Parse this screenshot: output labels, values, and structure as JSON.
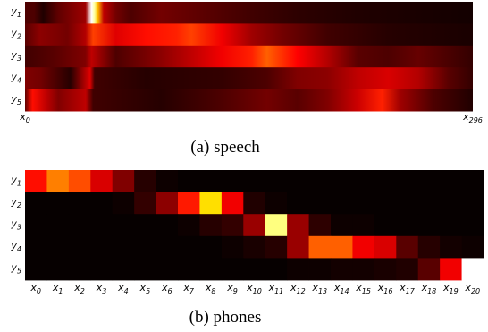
{
  "chart_data": [
    {
      "type": "heatmap",
      "caption": "(a) speech",
      "rows": [
        "y1",
        "y2",
        "y3",
        "y4",
        "y5"
      ],
      "x_tick_labels": [
        "x0",
        "x296"
      ],
      "x_range": [
        0,
        296
      ],
      "colormap": "hot",
      "bands": [
        [
          [
            6,
            0.12
          ],
          [
            12,
            0.05
          ],
          [
            22,
            0.15
          ],
          [
            40,
            0.25
          ],
          [
            44,
            1.0
          ],
          [
            46,
            0.92
          ],
          [
            48,
            0.7
          ],
          [
            52,
            0.3
          ],
          [
            60,
            0.18
          ],
          [
            70,
            0.12
          ],
          [
            90,
            0.18
          ],
          [
            120,
            0.14
          ],
          [
            150,
            0.1
          ],
          [
            180,
            0.07
          ],
          [
            220,
            0.05
          ],
          [
            260,
            0.04
          ],
          [
            296,
            0.03
          ]
        ],
        [
          [
            0,
            0.14
          ],
          [
            10,
            0.22
          ],
          [
            28,
            0.18
          ],
          [
            40,
            0.28
          ],
          [
            45,
            0.5
          ],
          [
            60,
            0.35
          ],
          [
            80,
            0.42
          ],
          [
            100,
            0.45
          ],
          [
            110,
            0.5
          ],
          [
            130,
            0.38
          ],
          [
            150,
            0.25
          ],
          [
            170,
            0.18
          ],
          [
            200,
            0.1
          ],
          [
            240,
            0.06
          ],
          [
            296,
            0.04
          ]
        ],
        [
          [
            0,
            0.1
          ],
          [
            20,
            0.14
          ],
          [
            40,
            0.2
          ],
          [
            44,
            0.3
          ],
          [
            60,
            0.12
          ],
          [
            90,
            0.22
          ],
          [
            110,
            0.3
          ],
          [
            130,
            0.38
          ],
          [
            150,
            0.45
          ],
          [
            160,
            0.55
          ],
          [
            180,
            0.4
          ],
          [
            200,
            0.28
          ],
          [
            220,
            0.14
          ],
          [
            240,
            0.12
          ],
          [
            260,
            0.16
          ],
          [
            296,
            0.08
          ]
        ],
        [
          [
            0,
            0.2
          ],
          [
            10,
            0.18
          ],
          [
            30,
            0.06
          ],
          [
            43,
            0.35
          ],
          [
            46,
            0.1
          ],
          [
            80,
            0.06
          ],
          [
            130,
            0.08
          ],
          [
            160,
            0.12
          ],
          [
            180,
            0.2
          ],
          [
            200,
            0.22
          ],
          [
            220,
            0.3
          ],
          [
            240,
            0.34
          ],
          [
            260,
            0.28
          ],
          [
            280,
            0.14
          ],
          [
            296,
            0.08
          ]
        ],
        [
          [
            0,
            0.15
          ],
          [
            5,
            0.42
          ],
          [
            14,
            0.3
          ],
          [
            22,
            0.2
          ],
          [
            40,
            0.3
          ],
          [
            45,
            0.1
          ],
          [
            90,
            0.06
          ],
          [
            130,
            0.12
          ],
          [
            160,
            0.18
          ],
          [
            180,
            0.14
          ],
          [
            200,
            0.2
          ],
          [
            220,
            0.32
          ],
          [
            236,
            0.45
          ],
          [
            248,
            0.25
          ],
          [
            270,
            0.12
          ],
          [
            296,
            0.05
          ]
        ]
      ]
    },
    {
      "type": "heatmap",
      "caption": "(b) phones",
      "rows": [
        "y1",
        "y2",
        "y3",
        "y4",
        "y5"
      ],
      "columns": [
        "x0",
        "x1",
        "x2",
        "x3",
        "x4",
        "x5",
        "x6",
        "x7",
        "x8",
        "x9",
        "x10",
        "x11",
        "x12",
        "x13",
        "x14",
        "x15",
        "x16",
        "x17",
        "x18",
        "x19",
        "x20"
      ],
      "colormap": "hot",
      "values": [
        [
          0.42,
          0.6,
          0.52,
          0.34,
          0.2,
          0.06,
          0.02,
          0.01,
          0.01,
          0.01,
          0.01,
          0.01,
          0.01,
          0.01,
          0.01,
          0.01,
          0.01,
          0.01,
          0.01,
          0.01,
          0.01
        ],
        [
          0.01,
          0.01,
          0.01,
          0.01,
          0.02,
          0.08,
          0.22,
          0.44,
          0.75,
          0.38,
          0.05,
          0.02,
          0.01,
          0.01,
          0.01,
          0.01,
          0.01,
          0.01,
          0.01,
          0.01,
          0.01
        ],
        [
          0.01,
          0.01,
          0.01,
          0.01,
          0.01,
          0.01,
          0.01,
          0.02,
          0.06,
          0.08,
          0.24,
          0.9,
          0.24,
          0.07,
          0.02,
          0.02,
          0.01,
          0.01,
          0.01,
          0.01,
          0.01
        ],
        [
          0.01,
          0.01,
          0.01,
          0.01,
          0.01,
          0.01,
          0.01,
          0.01,
          0.01,
          0.02,
          0.04,
          0.06,
          0.24,
          0.55,
          0.55,
          0.38,
          0.34,
          0.14,
          0.06,
          0.03,
          0.02
        ],
        [
          0.01,
          0.01,
          0.01,
          0.01,
          0.01,
          0.01,
          0.01,
          0.01,
          0.01,
          0.01,
          0.01,
          0.01,
          0.02,
          0.02,
          0.03,
          0.03,
          0.04,
          0.05,
          0.14,
          0.38,
          1.0
        ]
      ]
    }
  ]
}
